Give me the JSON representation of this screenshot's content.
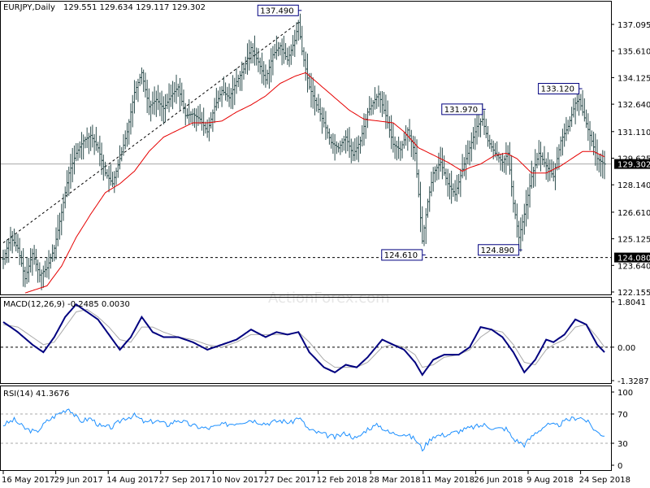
{
  "header": {
    "symbol": "EURJPY,Daily",
    "ohlc": "129.551 129.634 129.117 129.302"
  },
  "watermark": "ActionForex.com",
  "colors": {
    "price_bars": "#2f4f4f",
    "moving_average": "#e60000",
    "macd_line": "#00007f",
    "signal_line": "#a9a9a9",
    "rsi_line": "#1e90ff",
    "current_price_line": "#a9a9a9",
    "label_box_border": "#00007f"
  },
  "chart_data": [
    {
      "type": "line",
      "name": "price",
      "y_ticks": [
        "137.095",
        "135.610",
        "134.125",
        "132.640",
        "131.110",
        "129.625",
        "128.140",
        "126.610",
        "125.125",
        "123.640",
        "122.155"
      ],
      "ylim": [
        122.155,
        137.095
      ],
      "x_ticks": [
        "16 May 2017",
        "29 Jun 2017",
        "14 Aug 2017",
        "27 Sep 2017",
        "10 Nov 2017",
        "27 Dec 2017",
        "12 Feb 2018",
        "28 Mar 2018",
        "11 May 2018",
        "26 Jun 2018",
        "9 Aug 2018",
        "24 Sep 2018"
      ],
      "close_anchors": [
        [
          0,
          124.0
        ],
        [
          4,
          125.2
        ],
        [
          8,
          124.6
        ],
        [
          12,
          122.9
        ],
        [
          16,
          124.3
        ],
        [
          20,
          123.1
        ],
        [
          24,
          123.5
        ],
        [
          28,
          124.6
        ],
        [
          32,
          126.6
        ],
        [
          36,
          128.8
        ],
        [
          40,
          129.9
        ],
        [
          44,
          130.6
        ],
        [
          48,
          130.9
        ],
        [
          52,
          130.2
        ],
        [
          56,
          128.8
        ],
        [
          60,
          128.2
        ],
        [
          64,
          129.6
        ],
        [
          68,
          131.1
        ],
        [
          72,
          133.3
        ],
        [
          76,
          134.4
        ],
        [
          80,
          132.5
        ],
        [
          84,
          132.9
        ],
        [
          88,
          132.4
        ],
        [
          92,
          133.1
        ],
        [
          96,
          133.6
        ],
        [
          100,
          132.0
        ],
        [
          104,
          132.1
        ],
        [
          108,
          131.8
        ],
        [
          112,
          131.1
        ],
        [
          116,
          132.5
        ],
        [
          120,
          133.4
        ],
        [
          124,
          133.0
        ],
        [
          128,
          133.9
        ],
        [
          132,
          134.6
        ],
        [
          136,
          135.8
        ],
        [
          140,
          135.0
        ],
        [
          144,
          134.0
        ],
        [
          148,
          135.4
        ],
        [
          152,
          135.9
        ],
        [
          156,
          135.1
        ],
        [
          160,
          136.2
        ],
        [
          162,
          137.2
        ],
        [
          164,
          135.6
        ],
        [
          168,
          133.6
        ],
        [
          172,
          132.6
        ],
        [
          176,
          131.6
        ],
        [
          180,
          130.5
        ],
        [
          184,
          130.2
        ],
        [
          188,
          130.8
        ],
        [
          192,
          129.8
        ],
        [
          196,
          130.6
        ],
        [
          200,
          132.2
        ],
        [
          204,
          132.9
        ],
        [
          206,
          133.2
        ],
        [
          210,
          132.0
        ],
        [
          214,
          130.4
        ],
        [
          218,
          130.1
        ],
        [
          222,
          131.2
        ],
        [
          226,
          129.9
        ],
        [
          228,
          127.6
        ],
        [
          230,
          125.0
        ],
        [
          233,
          127.2
        ],
        [
          236,
          128.8
        ],
        [
          240,
          129.4
        ],
        [
          244,
          128.2
        ],
        [
          248,
          127.6
        ],
        [
          252,
          129.0
        ],
        [
          256,
          130.2
        ],
        [
          260,
          131.4
        ],
        [
          263,
          131.8
        ],
        [
          266,
          130.6
        ],
        [
          270,
          129.9
        ],
        [
          274,
          129.4
        ],
        [
          277,
          129.9
        ],
        [
          280,
          127.1
        ],
        [
          283,
          125.2
        ],
        [
          286,
          126.5
        ],
        [
          290,
          128.6
        ],
        [
          294,
          129.9
        ],
        [
          298,
          129.2
        ],
        [
          302,
          128.6
        ],
        [
          306,
          130.6
        ],
        [
          310,
          131.4
        ],
        [
          314,
          132.7
        ],
        [
          316,
          132.9
        ],
        [
          318,
          132.2
        ],
        [
          322,
          130.9
        ],
        [
          326,
          129.6
        ],
        [
          330,
          129.3
        ]
      ],
      "moving_average_anchors": [
        [
          12,
          122.1
        ],
        [
          24,
          122.5
        ],
        [
          32,
          123.6
        ],
        [
          40,
          125.2
        ],
        [
          48,
          126.5
        ],
        [
          56,
          127.7
        ],
        [
          64,
          128.2
        ],
        [
          72,
          128.9
        ],
        [
          80,
          130.0
        ],
        [
          88,
          130.8
        ],
        [
          96,
          131.2
        ],
        [
          104,
          131.6
        ],
        [
          112,
          131.6
        ],
        [
          120,
          131.7
        ],
        [
          128,
          132.2
        ],
        [
          136,
          132.6
        ],
        [
          144,
          133.1
        ],
        [
          152,
          133.8
        ],
        [
          160,
          134.2
        ],
        [
          166,
          134.4
        ],
        [
          174,
          133.7
        ],
        [
          182,
          133.0
        ],
        [
          190,
          132.3
        ],
        [
          198,
          131.8
        ],
        [
          206,
          131.7
        ],
        [
          214,
          131.6
        ],
        [
          220,
          131.1
        ],
        [
          228,
          130.2
        ],
        [
          236,
          129.8
        ],
        [
          244,
          129.4
        ],
        [
          252,
          128.9
        ],
        [
          256,
          129.1
        ],
        [
          262,
          129.3
        ],
        [
          270,
          129.8
        ],
        [
          276,
          129.9
        ],
        [
          282,
          129.6
        ],
        [
          290,
          128.8
        ],
        [
          298,
          128.8
        ],
        [
          306,
          129.2
        ],
        [
          312,
          129.6
        ],
        [
          318,
          130.0
        ],
        [
          324,
          130.0
        ],
        [
          330,
          129.7
        ]
      ],
      "current_price": 129.302,
      "current_price_label": "129.302",
      "labels": [
        {
          "text": "137.490",
          "index": 162,
          "value": 137.49,
          "side": "top"
        },
        {
          "text": "133.120",
          "index": 316,
          "value": 133.12,
          "side": "top"
        },
        {
          "text": "131.970",
          "index": 263,
          "value": 131.97,
          "side": "top"
        },
        {
          "text": "124.610",
          "index": 230,
          "value": 124.61,
          "side": "bottom"
        },
        {
          "text": "124.890",
          "index": 283,
          "value": 124.89,
          "side": "bottom"
        }
      ],
      "support_line": {
        "value": 124.08,
        "label": "124.080"
      },
      "trendline": [
        [
          0,
          124.9
        ],
        [
          162,
          137.2
        ]
      ]
    },
    {
      "type": "line",
      "name": "MACD",
      "title": "MACD(12,26,9) -0.2485 0.0030",
      "y_ticks": [
        "1.8041",
        "0.00",
        "-1.3287"
      ],
      "ylim": [
        -1.3287,
        1.8041
      ],
      "zero_label": "0.00",
      "macd_anchors": [
        [
          0,
          1.0
        ],
        [
          8,
          0.6
        ],
        [
          16,
          0.1
        ],
        [
          22,
          -0.2
        ],
        [
          28,
          0.4
        ],
        [
          34,
          1.2
        ],
        [
          40,
          1.7
        ],
        [
          46,
          1.4
        ],
        [
          52,
          1.1
        ],
        [
          58,
          0.5
        ],
        [
          64,
          -0.1
        ],
        [
          70,
          0.4
        ],
        [
          76,
          1.2
        ],
        [
          82,
          0.6
        ],
        [
          88,
          0.4
        ],
        [
          96,
          0.4
        ],
        [
          104,
          0.2
        ],
        [
          112,
          -0.1
        ],
        [
          120,
          0.1
        ],
        [
          128,
          0.3
        ],
        [
          136,
          0.7
        ],
        [
          144,
          0.4
        ],
        [
          150,
          0.6
        ],
        [
          156,
          0.5
        ],
        [
          162,
          0.6
        ],
        [
          168,
          -0.2
        ],
        [
          176,
          -0.8
        ],
        [
          182,
          -1.0
        ],
        [
          188,
          -0.7
        ],
        [
          194,
          -0.8
        ],
        [
          200,
          -0.4
        ],
        [
          208,
          0.3
        ],
        [
          214,
          0.1
        ],
        [
          220,
          -0.1
        ],
        [
          226,
          -0.6
        ],
        [
          230,
          -1.1
        ],
        [
          236,
          -0.5
        ],
        [
          242,
          -0.3
        ],
        [
          250,
          -0.3
        ],
        [
          256,
          0.0
        ],
        [
          262,
          0.8
        ],
        [
          268,
          0.7
        ],
        [
          274,
          0.4
        ],
        [
          280,
          -0.2
        ],
        [
          286,
          -1.0
        ],
        [
          292,
          -0.5
        ],
        [
          298,
          0.3
        ],
        [
          302,
          0.2
        ],
        [
          308,
          0.5
        ],
        [
          314,
          1.1
        ],
        [
          320,
          0.9
        ],
        [
          326,
          0.1
        ],
        [
          330,
          -0.2
        ]
      ],
      "signal_anchors": [
        [
          0,
          0.9
        ],
        [
          8,
          0.8
        ],
        [
          16,
          0.4
        ],
        [
          22,
          0.1
        ],
        [
          28,
          0.2
        ],
        [
          34,
          0.8
        ],
        [
          40,
          1.4
        ],
        [
          46,
          1.5
        ],
        [
          52,
          1.2
        ],
        [
          58,
          0.8
        ],
        [
          64,
          0.3
        ],
        [
          70,
          0.2
        ],
        [
          76,
          0.8
        ],
        [
          82,
          0.8
        ],
        [
          88,
          0.6
        ],
        [
          96,
          0.4
        ],
        [
          104,
          0.3
        ],
        [
          112,
          0.1
        ],
        [
          120,
          0.0
        ],
        [
          128,
          0.2
        ],
        [
          136,
          0.5
        ],
        [
          144,
          0.5
        ],
        [
          150,
          0.5
        ],
        [
          156,
          0.5
        ],
        [
          162,
          0.6
        ],
        [
          168,
          0.2
        ],
        [
          176,
          -0.5
        ],
        [
          182,
          -0.8
        ],
        [
          188,
          -0.8
        ],
        [
          194,
          -0.8
        ],
        [
          200,
          -0.6
        ],
        [
          208,
          0.0
        ],
        [
          214,
          0.1
        ],
        [
          220,
          0.0
        ],
        [
          226,
          -0.3
        ],
        [
          230,
          -0.8
        ],
        [
          236,
          -0.7
        ],
        [
          242,
          -0.4
        ],
        [
          250,
          -0.3
        ],
        [
          256,
          -0.1
        ],
        [
          262,
          0.4
        ],
        [
          268,
          0.7
        ],
        [
          274,
          0.6
        ],
        [
          280,
          0.1
        ],
        [
          286,
          -0.6
        ],
        [
          292,
          -0.7
        ],
        [
          298,
          -0.1
        ],
        [
          302,
          0.1
        ],
        [
          308,
          0.3
        ],
        [
          314,
          0.8
        ],
        [
          320,
          0.9
        ],
        [
          326,
          0.4
        ],
        [
          330,
          0.0
        ]
      ]
    },
    {
      "type": "line",
      "name": "RSI",
      "title": "RSI(14) 41.3676",
      "y_ticks": [
        "100",
        "70",
        "30",
        "0"
      ],
      "ylim": [
        0,
        100
      ],
      "levels": [
        70,
        30
      ],
      "rsi_anchors": [
        [
          0,
          55
        ],
        [
          6,
          62
        ],
        [
          12,
          50
        ],
        [
          18,
          45
        ],
        [
          24,
          60
        ],
        [
          30,
          70
        ],
        [
          36,
          78
        ],
        [
          42,
          60
        ],
        [
          48,
          64
        ],
        [
          54,
          52
        ],
        [
          60,
          52
        ],
        [
          66,
          64
        ],
        [
          72,
          68
        ],
        [
          78,
          58
        ],
        [
          84,
          61
        ],
        [
          90,
          55
        ],
        [
          96,
          62
        ],
        [
          104,
          54
        ],
        [
          112,
          50
        ],
        [
          120,
          55
        ],
        [
          128,
          58
        ],
        [
          136,
          62
        ],
        [
          144,
          57
        ],
        [
          152,
          61
        ],
        [
          158,
          58
        ],
        [
          162,
          66
        ],
        [
          168,
          48
        ],
        [
          176,
          42
        ],
        [
          182,
          38
        ],
        [
          188,
          44
        ],
        [
          194,
          36
        ],
        [
          200,
          50
        ],
        [
          206,
          55
        ],
        [
          212,
          44
        ],
        [
          220,
          43
        ],
        [
          226,
          36
        ],
        [
          230,
          22
        ],
        [
          236,
          40
        ],
        [
          244,
          42
        ],
        [
          252,
          48
        ],
        [
          258,
          52
        ],
        [
          264,
          55
        ],
        [
          270,
          50
        ],
        [
          276,
          50
        ],
        [
          280,
          36
        ],
        [
          286,
          28
        ],
        [
          292,
          44
        ],
        [
          298,
          55
        ],
        [
          304,
          54
        ],
        [
          310,
          62
        ],
        [
          316,
          66
        ],
        [
          320,
          61
        ],
        [
          326,
          45
        ],
        [
          330,
          41
        ]
      ]
    }
  ]
}
